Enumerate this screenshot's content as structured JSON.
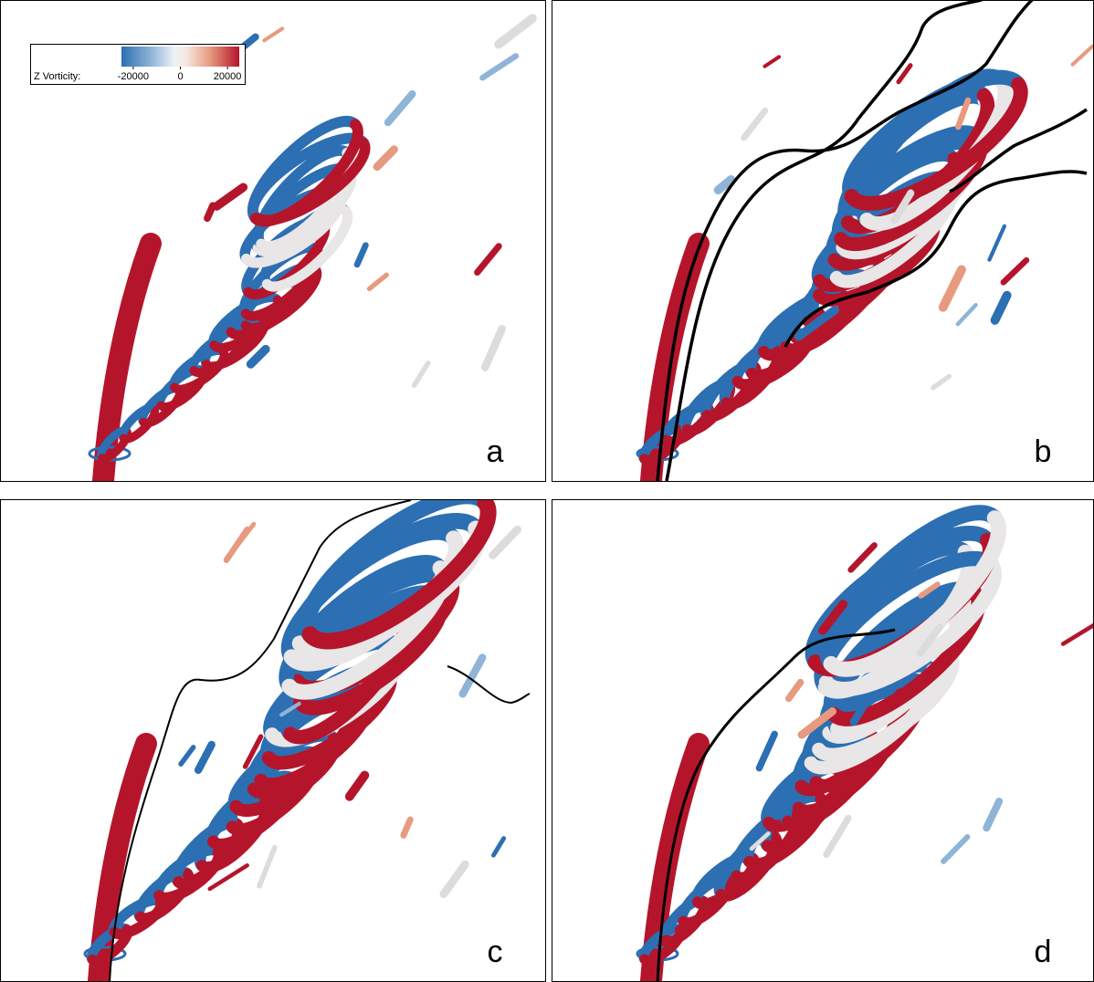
{
  "colorbar": {
    "label": "Z Vorticity:",
    "range": [
      -25000,
      25000
    ],
    "ticks": [
      -20000,
      0,
      20000
    ]
  },
  "panels": [
    {
      "label": "a"
    },
    {
      "label": "b"
    },
    {
      "label": "c"
    },
    {
      "label": "d"
    }
  ]
}
